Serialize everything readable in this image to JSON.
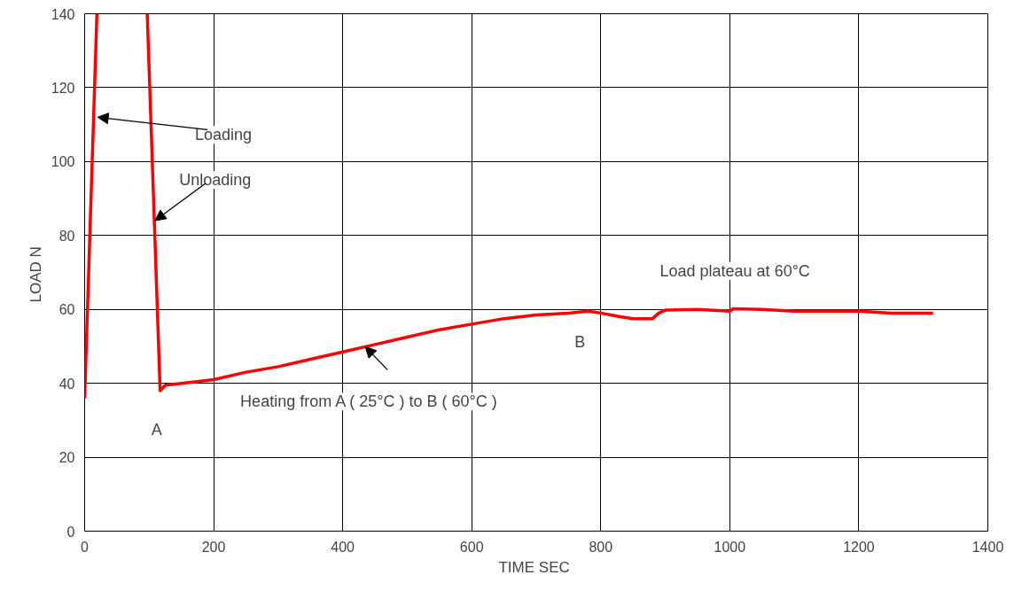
{
  "chart_data": {
    "type": "line",
    "xlabel": "TIME  SEC",
    "ylabel": "LOAD  N",
    "xlim": [
      0,
      1400
    ],
    "ylim": [
      0,
      140
    ],
    "xticks": [
      0,
      200,
      400,
      600,
      800,
      1000,
      1200,
      1400
    ],
    "yticks": [
      0,
      20,
      40,
      60,
      80,
      100,
      120,
      140
    ],
    "grid": true,
    "marker": "none",
    "line_style": "solid",
    "series": [
      {
        "color": "#ff0000",
        "x": [
          0,
          19,
          20,
          96,
          97,
          117,
          125,
          150,
          200,
          250,
          300,
          350,
          400,
          450,
          500,
          550,
          600,
          650,
          700,
          750,
          780,
          800,
          830,
          850,
          870,
          880,
          890,
          900,
          950,
          1000,
          1005,
          1050,
          1100,
          1150,
          1200,
          1250,
          1300,
          1315
        ],
        "values": [
          36,
          140,
          null,
          null,
          140,
          38,
          39.5,
          40,
          41,
          43,
          44.5,
          46.5,
          48.5,
          50.5,
          52.5,
          54.5,
          56,
          57.5,
          58.5,
          59,
          59.5,
          59,
          58,
          57.5,
          57.5,
          57.5,
          59,
          59.8,
          60,
          59.5,
          60.2,
          60,
          59.5,
          59.5,
          59.5,
          59,
          59,
          59
        ]
      }
    ],
    "annotations": [
      {
        "text": "Loading",
        "x": 20,
        "y": 112
      },
      {
        "text": "Unloading",
        "x": 109,
        "y": 84
      },
      {
        "text": "Heating from  A ( 25°C )  to  B ( 60°C )",
        "x": 435,
        "y": 49.9
      },
      "Load plateau at 60°C",
      {
        "text": "A",
        "x": 117,
        "y": 38
      },
      {
        "text": "B",
        "x": 780,
        "y": 59.5
      }
    ]
  }
}
